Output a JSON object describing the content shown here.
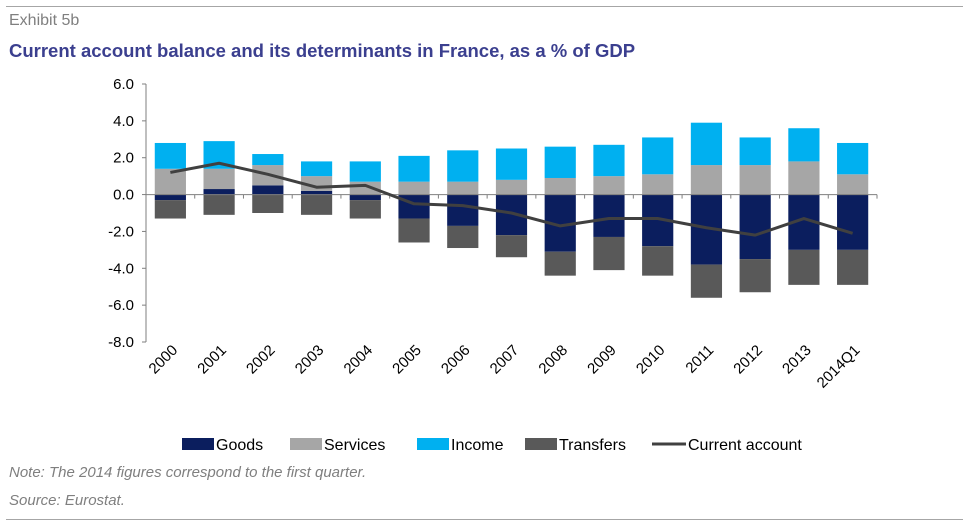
{
  "exhibit_label": "Exhibit 5b",
  "title": "Current account balance and its determinants in France, as a % of GDP",
  "note": "Note: The 2014 figures correspond to the first quarter.",
  "source": "Source: Eurostat.",
  "colors": {
    "goods": "#0b1e5e",
    "services": "#a6a6a6",
    "income": "#00b0f0",
    "transfers": "#595959",
    "current_account": "#404040",
    "title": "#3b3f8f"
  },
  "chart_data": {
    "type": "bar",
    "stacked": true,
    "overlay_line": "Current account",
    "categories": [
      "2000",
      "2001",
      "2002",
      "2003",
      "2004",
      "2005",
      "2006",
      "2007",
      "2008",
      "2009",
      "2010",
      "2011",
      "2012",
      "2013",
      "2014Q1"
    ],
    "series": [
      {
        "name": "Goods",
        "kind": "bar",
        "values": [
          -0.3,
          0.3,
          0.5,
          0.2,
          -0.3,
          -1.3,
          -1.7,
          -2.2,
          -3.1,
          -2.3,
          -2.8,
          -3.8,
          -3.5,
          -3.0,
          -3.0
        ]
      },
      {
        "name": "Services",
        "kind": "bar",
        "values": [
          1.4,
          1.1,
          1.1,
          0.8,
          0.7,
          0.7,
          0.7,
          0.8,
          0.9,
          1.0,
          1.1,
          1.6,
          1.6,
          1.8,
          1.1
        ]
      },
      {
        "name": "Income",
        "kind": "bar",
        "values": [
          1.4,
          1.5,
          0.6,
          0.8,
          1.1,
          1.4,
          1.7,
          1.7,
          1.7,
          1.7,
          2.0,
          2.3,
          1.5,
          1.8,
          1.7
        ]
      },
      {
        "name": "Transfers",
        "kind": "bar",
        "values": [
          -1.0,
          -1.1,
          -1.0,
          -1.1,
          -1.0,
          -1.3,
          -1.2,
          -1.2,
          -1.3,
          -1.8,
          -1.6,
          -1.8,
          -1.8,
          -1.9,
          -1.9
        ]
      },
      {
        "name": "Current account",
        "kind": "line",
        "values": [
          1.2,
          1.7,
          1.1,
          0.4,
          0.5,
          -0.5,
          -0.6,
          -1.0,
          -1.7,
          -1.3,
          -1.3,
          -1.8,
          -2.2,
          -1.3,
          -2.1
        ]
      }
    ],
    "ylim": [
      -8.0,
      6.0
    ],
    "yticks": [
      "6.0",
      "4.0",
      "2.0",
      "0.0",
      "-2.0",
      "-4.0",
      "-6.0",
      "-8.0"
    ],
    "xlabel": "",
    "ylabel": "",
    "grid": false,
    "legend_position": "bottom"
  }
}
